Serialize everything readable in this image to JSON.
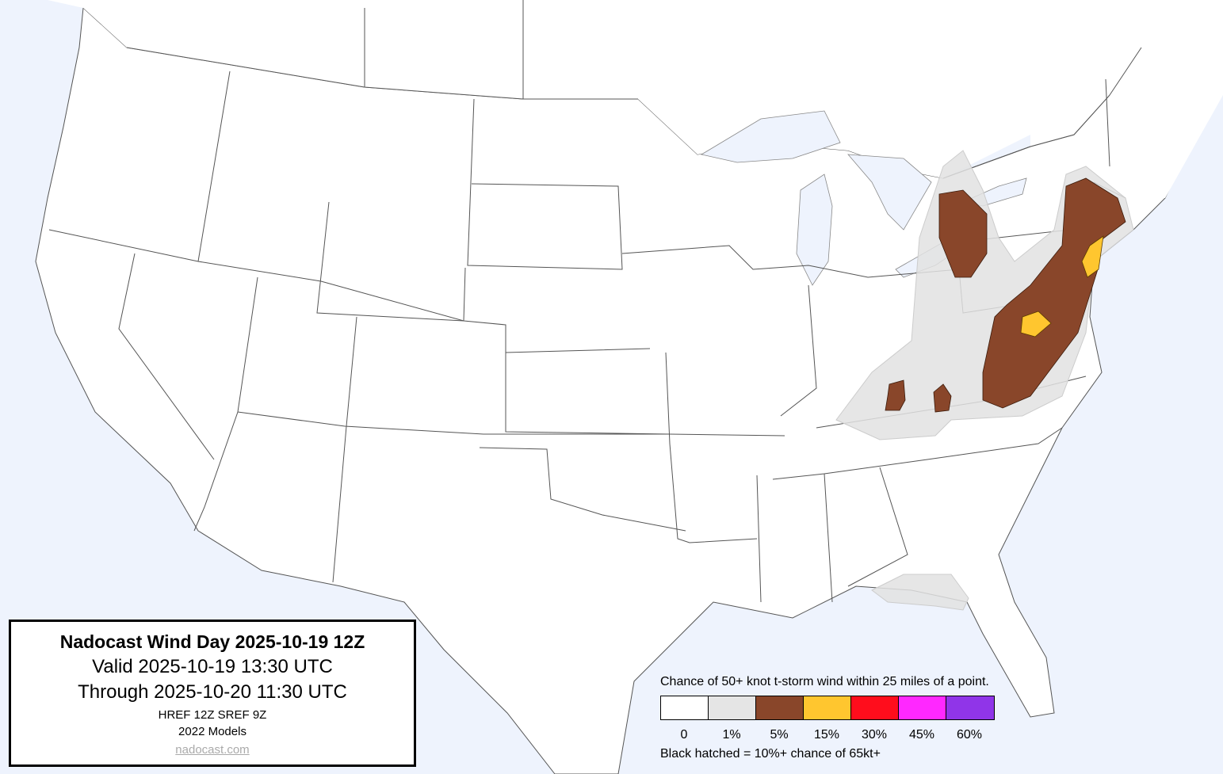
{
  "title_box": {
    "title": "Nadocast Wind Day 2025-10-19 12Z",
    "valid": "Valid 2025-10-19 13:30 UTC",
    "through": "Through 2025-10-20 11:30 UTC",
    "models_line": "HREF 12Z SREF 9Z",
    "models_year": "2022 Models",
    "link": "nadocast.com"
  },
  "legend": {
    "title": "Chance of 50+ knot t-storm wind within 25 miles of a point.",
    "bins": [
      {
        "label": "0",
        "color": "#ffffff"
      },
      {
        "label": "1%",
        "color": "#e5e5e5"
      },
      {
        "label": "5%",
        "color": "#89462a"
      },
      {
        "label": "15%",
        "color": "#ffc62f"
      },
      {
        "label": "30%",
        "color": "#ff0d1c"
      },
      {
        "label": "45%",
        "color": "#ff28ff"
      },
      {
        "label": "60%",
        "color": "#9035e8"
      }
    ],
    "note": "Black hatched = 10%+ chance of 65kt+"
  },
  "colors": {
    "water": "#eef3fd",
    "land": "#ffffff",
    "borders": "#555555"
  }
}
